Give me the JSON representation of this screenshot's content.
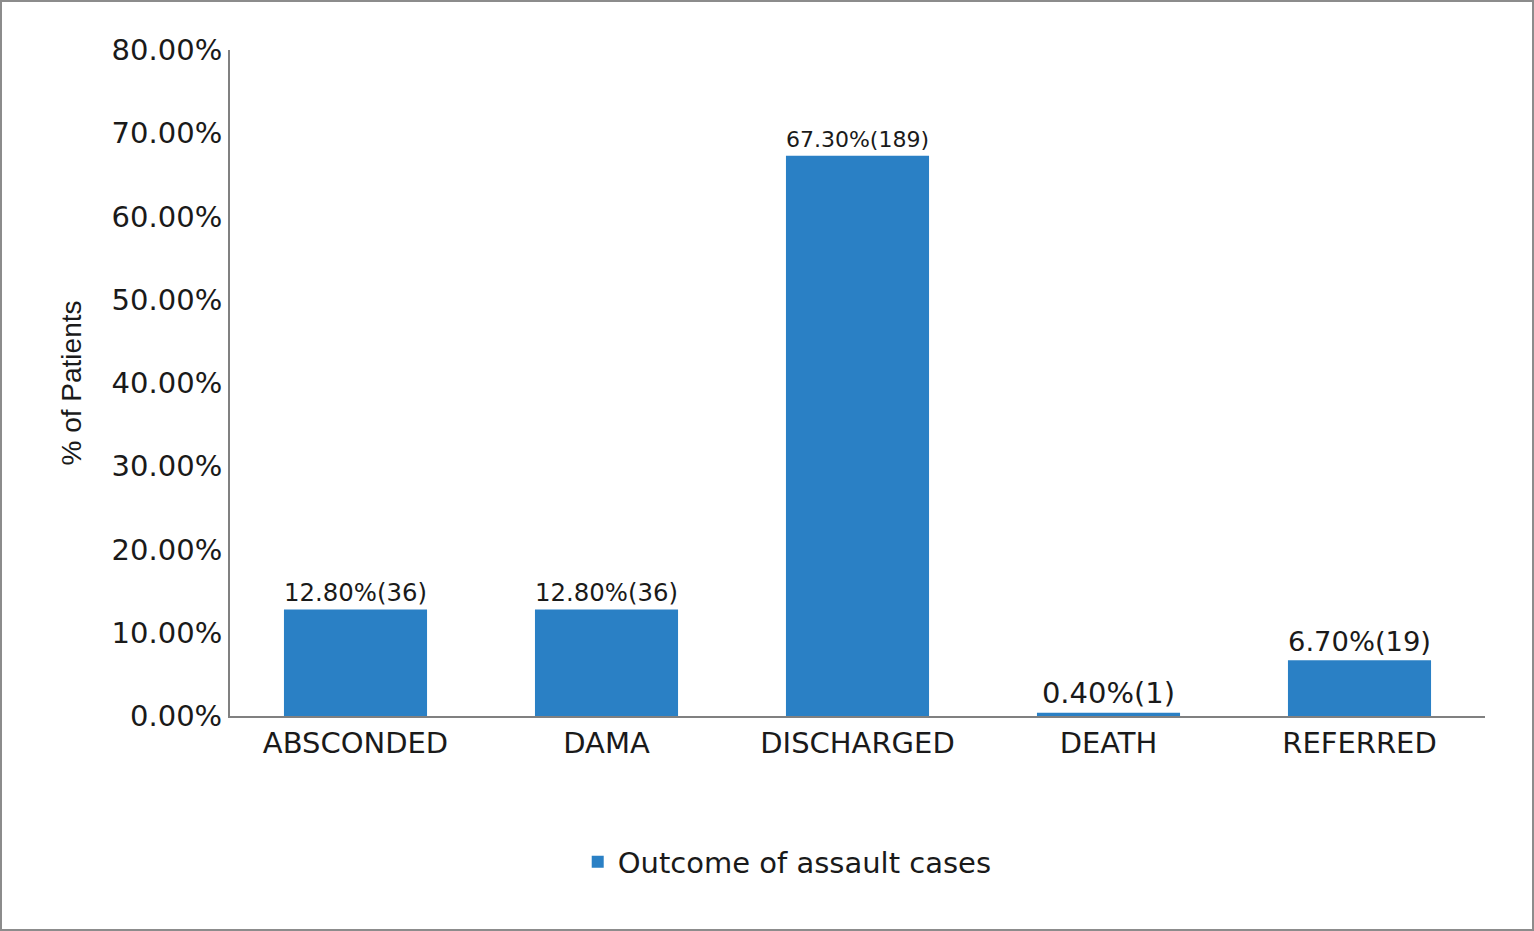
{
  "chart_data": {
    "type": "bar",
    "categories": [
      "ABSCONDED",
      "DAMA",
      "DISCHARGED",
      "DEATH",
      "REFERRED"
    ],
    "series": [
      {
        "name": "Outcome of assault cases",
        "color": "#2a80c5",
        "values": [
          12.8,
          12.8,
          67.3,
          0.4,
          6.7
        ],
        "value_labels": [
          "12.80%(36)",
          "12.80%(36)",
          "67.30%(189)",
          "0.40%(1)",
          "6.70%(19)"
        ]
      }
    ],
    "y_label": "% of Patients",
    "ylim": [
      0,
      80
    ],
    "yticks": [
      {
        "value": 0,
        "label": "0.00%"
      },
      {
        "value": 10,
        "label": "10.00%"
      },
      {
        "value": 20,
        "label": "20.00%"
      },
      {
        "value": 30,
        "label": "30.00%"
      },
      {
        "value": 40,
        "label": "40.00%"
      },
      {
        "value": 50,
        "label": "50.00%"
      },
      {
        "value": 60,
        "label": "60.00%"
      },
      {
        "value": 70,
        "label": "70.00%"
      },
      {
        "value": 80,
        "label": "80.00%"
      }
    ],
    "grid": false,
    "legend": "bottom",
    "data_labels": true
  }
}
